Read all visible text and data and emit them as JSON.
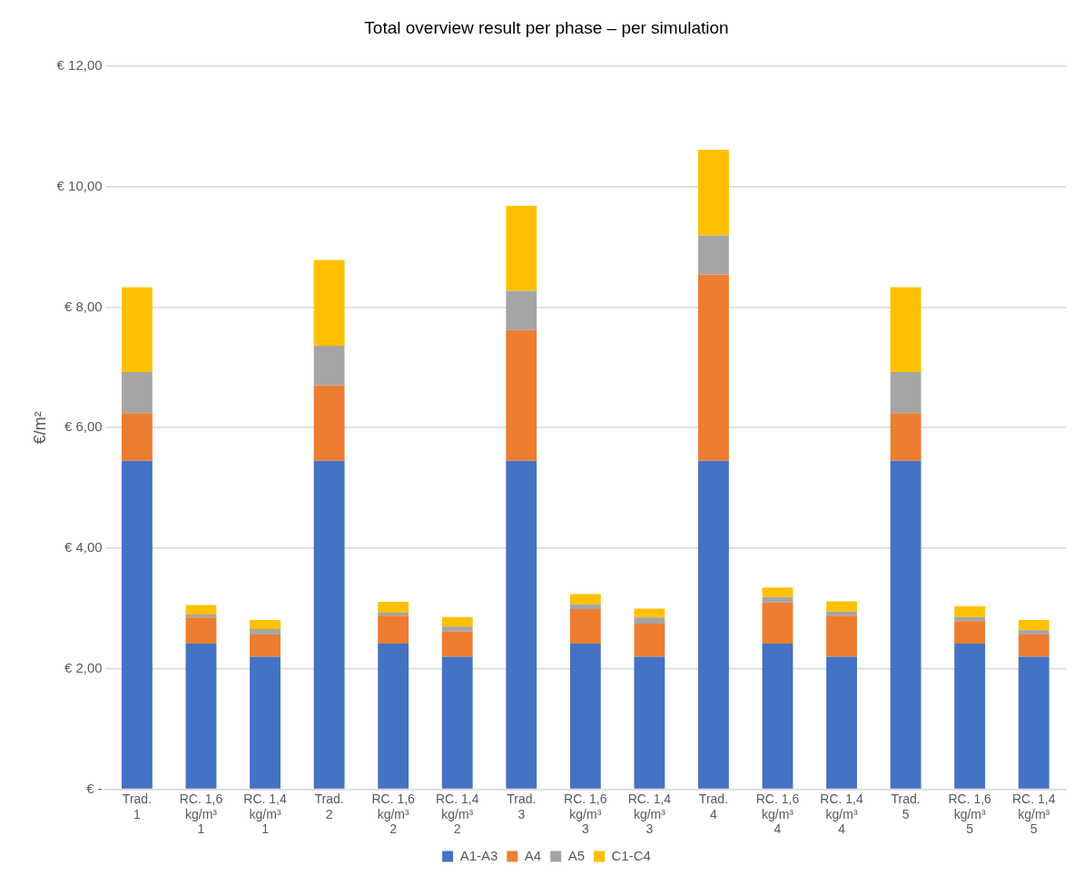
{
  "chart_data": {
    "type": "bar",
    "stacked": true,
    "title": "Total overview result per phase – per simulation",
    "ylabel": "€/m²",
    "categories": [
      "Trad.\n1",
      "RC. 1,6\nkg/m³\n1",
      "RC. 1,4\nkg/m³\n1",
      "Trad.\n2",
      "RC. 1,6\nkg/m³\n2",
      "RC. 1,4\nkg/m³\n2",
      "Trad.\n3",
      "RC. 1,6\nkg/m³\n3",
      "RC. 1,4\nkg/m³\n3",
      "Trad.\n4",
      "RC. 1,6\nkg/m³\n4",
      "RC. 1,4\nkg/m³\n4",
      "Trad.\n5",
      "RC. 1,6\nkg/m³\n5",
      "RC. 1,4\nkg/m³\n5"
    ],
    "series": [
      {
        "name": "A1-A3",
        "color": "#4472c4",
        "values": [
          5.45,
          2.42,
          2.2,
          5.45,
          2.42,
          2.2,
          5.45,
          2.42,
          2.2,
          5.45,
          2.42,
          2.2,
          5.45,
          2.42,
          2.2
        ]
      },
      {
        "name": "A4",
        "color": "#ed7d31",
        "values": [
          0.79,
          0.43,
          0.37,
          1.25,
          0.46,
          0.42,
          2.17,
          0.57,
          0.55,
          3.09,
          0.68,
          0.68,
          0.79,
          0.37,
          0.37
        ]
      },
      {
        "name": "A5",
        "color": "#a5a5a5",
        "values": [
          0.68,
          0.05,
          0.09,
          0.66,
          0.05,
          0.08,
          0.65,
          0.08,
          0.1,
          0.65,
          0.09,
          0.07,
          0.68,
          0.07,
          0.07
        ]
      },
      {
        "name": "C1-C4",
        "color": "#ffc000",
        "values": [
          1.41,
          0.16,
          0.15,
          1.42,
          0.18,
          0.16,
          1.41,
          0.17,
          0.15,
          1.42,
          0.16,
          0.17,
          1.41,
          0.18,
          0.17
        ]
      }
    ],
    "ylim": [
      0,
      12
    ],
    "yticks": [
      {
        "value": 0,
        "label": "€ -"
      },
      {
        "value": 2,
        "label": "€ 2,00"
      },
      {
        "value": 4,
        "label": "€ 4,00"
      },
      {
        "value": 6,
        "label": "€ 6,00"
      },
      {
        "value": 8,
        "label": "€ 8,00"
      },
      {
        "value": 10,
        "label": "€ 10,00"
      },
      {
        "value": 12,
        "label": "€ 12,00"
      }
    ],
    "grid": "y",
    "legend": "bottom"
  }
}
